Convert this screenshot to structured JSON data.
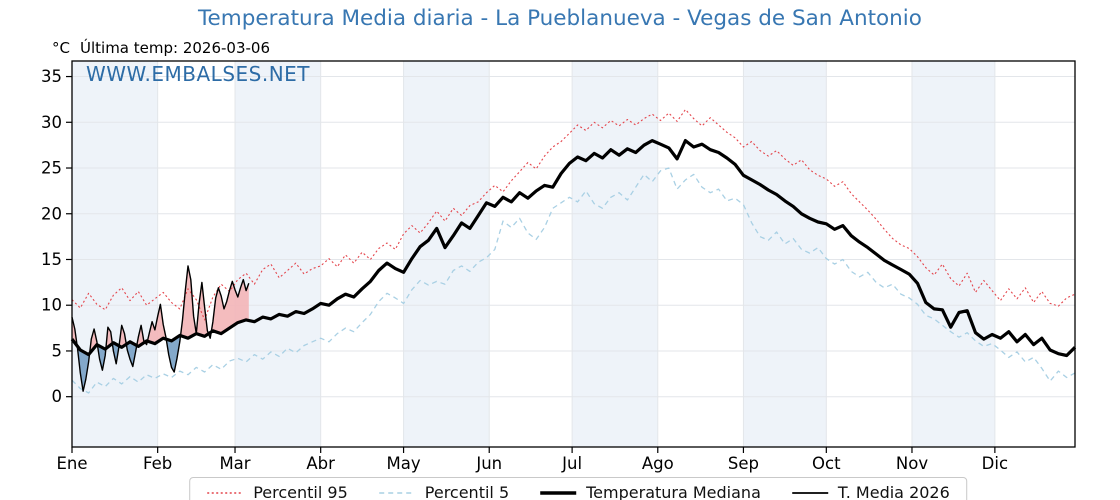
{
  "title": "Temperatura Media diaria - La Pueblanueva - Vegas de San Antonio",
  "unit": "°C",
  "last_temp_label": "Última temp: 2026-03-06",
  "watermark": "WWW.EMBALSES.NET",
  "colors": {
    "title": "#3877b2",
    "watermark": "#2d6ca6"
  },
  "chart_data": {
    "type": "line",
    "title": "Temperatura Media diaria - La Pueblanueva - Vegas de San Antonio",
    "ylabel": "°C",
    "ylim": [
      -5.5,
      36.7
    ],
    "yticks": [
      0,
      5,
      10,
      15,
      20,
      25,
      30,
      35
    ],
    "month_start_days": [
      0,
      31,
      59,
      90,
      120,
      151,
      181,
      212,
      243,
      273,
      304,
      334
    ],
    "month_labels": [
      "Ene",
      "Feb",
      "Mar",
      "Abr",
      "May",
      "Jun",
      "Jul",
      "Ago",
      "Sep",
      "Oct",
      "Nov",
      "Dic"
    ],
    "shaded_months": [
      0,
      2,
      4,
      6,
      8,
      10
    ],
    "grid": true,
    "legend_position": "bottom-center",
    "colors": {
      "band": "#eef3f9",
      "grid": "#e3e6ea",
      "fill_above": "#f3b6b8",
      "fill_below": "#7aa2c6"
    },
    "series": [
      {
        "key": "p95",
        "name": "Percentil 95",
        "color": "#e4454c",
        "dash": "2 2.5",
        "width": 1.1,
        "start_day": 0,
        "step_days": 3,
        "values": [
          10.6,
          9.7,
          11.3,
          10.1,
          9.5,
          11.1,
          11.9,
          10.5,
          11.5,
          10.0,
          10.7,
          11.4,
          10.3,
          9.6,
          11.8,
          10.6,
          8.4,
          10.9,
          12.3,
          11.5,
          12.8,
          13.5,
          12.3,
          13.9,
          14.5,
          13.0,
          13.8,
          14.6,
          13.4,
          14.0,
          14.3,
          15.1,
          14.2,
          15.5,
          14.6,
          15.8,
          15.0,
          16.2,
          16.8,
          16.1,
          17.8,
          18.7,
          17.9,
          19.0,
          20.3,
          19.2,
          20.6,
          19.8,
          20.9,
          21.3,
          22.3,
          23.1,
          22.4,
          23.6,
          24.6,
          25.6,
          24.9,
          26.3,
          27.3,
          27.9,
          28.8,
          29.7,
          29.1,
          30.0,
          29.4,
          30.2,
          29.6,
          30.3,
          29.7,
          30.4,
          30.9,
          30.2,
          31.0,
          30.1,
          31.4,
          30.4,
          29.6,
          30.5,
          29.7,
          28.9,
          28.3,
          27.3,
          27.9,
          26.9,
          26.3,
          26.9,
          26.0,
          25.3,
          25.9,
          24.8,
          24.2,
          23.8,
          23.0,
          23.5,
          22.2,
          21.3,
          20.4,
          19.4,
          18.3,
          17.3,
          16.6,
          16.2,
          15.3,
          14.1,
          13.3,
          14.5,
          12.9,
          12.1,
          13.5,
          11.4,
          12.7,
          11.6,
          10.5,
          11.8,
          10.7,
          11.9,
          10.3,
          11.5,
          10.2,
          9.9,
          10.8,
          11.2
        ]
      },
      {
        "key": "p5",
        "name": "Percentil 5",
        "color": "#a9d0e4",
        "dash": "5 4",
        "width": 1.3,
        "start_day": 0,
        "step_days": 3,
        "values": [
          1.8,
          0.9,
          0.4,
          1.6,
          1.1,
          2.0,
          1.4,
          2.2,
          1.6,
          2.4,
          2.0,
          2.5,
          2.1,
          2.8,
          2.4,
          3.2,
          2.7,
          3.5,
          3.0,
          3.9,
          4.2,
          3.8,
          4.6,
          4.1,
          4.9,
          4.4,
          5.3,
          4.8,
          5.6,
          6.0,
          6.4,
          6.0,
          6.9,
          7.5,
          7.1,
          8.1,
          9.0,
          10.4,
          11.3,
          10.8,
          10.2,
          11.7,
          12.7,
          12.2,
          12.6,
          12.3,
          13.8,
          14.3,
          13.7,
          14.7,
          15.2,
          16.1,
          19.2,
          18.5,
          19.5,
          17.9,
          17.2,
          18.5,
          20.6,
          21.2,
          21.8,
          21.3,
          22.5,
          21.1,
          20.6,
          21.8,
          22.3,
          21.5,
          22.9,
          24.3,
          23.5,
          24.7,
          25.0,
          22.7,
          23.7,
          24.3,
          22.9,
          22.3,
          22.7,
          21.4,
          21.7,
          21.0,
          19.0,
          17.5,
          17.1,
          18.0,
          16.7,
          17.3,
          16.1,
          15.7,
          16.3,
          15.1,
          14.5,
          15.0,
          13.7,
          13.1,
          13.6,
          12.5,
          11.9,
          12.3,
          11.2,
          10.8,
          10.1,
          8.9,
          8.5,
          7.8,
          7.1,
          6.5,
          7.0,
          6.1,
          5.5,
          5.8,
          5.1,
          4.3,
          4.9,
          3.8,
          4.3,
          3.1,
          1.7,
          2.8,
          2.1,
          2.6
        ]
      },
      {
        "key": "median",
        "name": "Temperatura Mediana",
        "color": "#000000",
        "dash": "",
        "width": 3.2,
        "start_day": 0,
        "step_days": 3,
        "values": [
          6.3,
          5.1,
          4.6,
          5.7,
          5.2,
          5.9,
          5.4,
          6.0,
          5.5,
          6.1,
          5.8,
          6.4,
          6.1,
          6.7,
          6.4,
          6.9,
          6.6,
          7.2,
          6.9,
          7.5,
          8.1,
          8.4,
          8.2,
          8.7,
          8.5,
          9.0,
          8.8,
          9.3,
          9.1,
          9.6,
          10.2,
          10.0,
          10.7,
          11.2,
          10.9,
          11.8,
          12.6,
          13.8,
          14.6,
          14.0,
          13.6,
          15.1,
          16.4,
          17.1,
          18.4,
          16.3,
          17.6,
          19.0,
          18.4,
          19.8,
          21.2,
          20.8,
          21.8,
          21.3,
          22.3,
          21.7,
          22.5,
          23.1,
          22.9,
          24.4,
          25.5,
          26.2,
          25.8,
          26.6,
          26.1,
          27.0,
          26.4,
          27.1,
          26.7,
          27.5,
          28.0,
          27.6,
          27.2,
          26.0,
          28.0,
          27.3,
          27.6,
          27.0,
          26.7,
          26.1,
          25.4,
          24.2,
          23.7,
          23.2,
          22.6,
          22.1,
          21.4,
          20.8,
          20.0,
          19.5,
          19.1,
          18.9,
          18.3,
          18.7,
          17.6,
          16.9,
          16.3,
          15.6,
          14.9,
          14.4,
          13.9,
          13.4,
          12.4,
          10.3,
          9.6,
          9.5,
          7.6,
          9.2,
          9.4,
          7.0,
          6.3,
          6.8,
          6.4,
          7.1,
          6.0,
          6.8,
          5.7,
          6.4,
          5.1,
          4.7,
          4.5,
          5.4
        ]
      },
      {
        "key": "media2026",
        "name": "T. Media 2026",
        "color": "#000000",
        "dash": "",
        "width": 1.4,
        "start_day": 0,
        "step_days": 1,
        "values": [
          8.7,
          7.4,
          5.3,
          2.6,
          0.6,
          1.9,
          3.8,
          6.3,
          7.4,
          6.0,
          4.1,
          2.9,
          4.5,
          7.6,
          7.1,
          5.0,
          3.6,
          5.5,
          7.8,
          6.9,
          5.1,
          4.1,
          3.3,
          4.9,
          6.5,
          7.8,
          6.1,
          5.7,
          7.0,
          8.2,
          7.3,
          8.8,
          10.1,
          7.9,
          6.5,
          4.6,
          3.2,
          2.7,
          4.2,
          6.0,
          8.4,
          11.6,
          14.3,
          12.8,
          8.8,
          6.9,
          10.2,
          12.5,
          9.8,
          7.2,
          6.4,
          8.2,
          10.8,
          11.9,
          11.0,
          9.6,
          10.4,
          11.6,
          12.6,
          11.7,
          10.9,
          11.9,
          12.8,
          11.6,
          12.4
        ]
      }
    ],
    "fill_between": {
      "upper": "media2026",
      "baseline": "median"
    }
  }
}
